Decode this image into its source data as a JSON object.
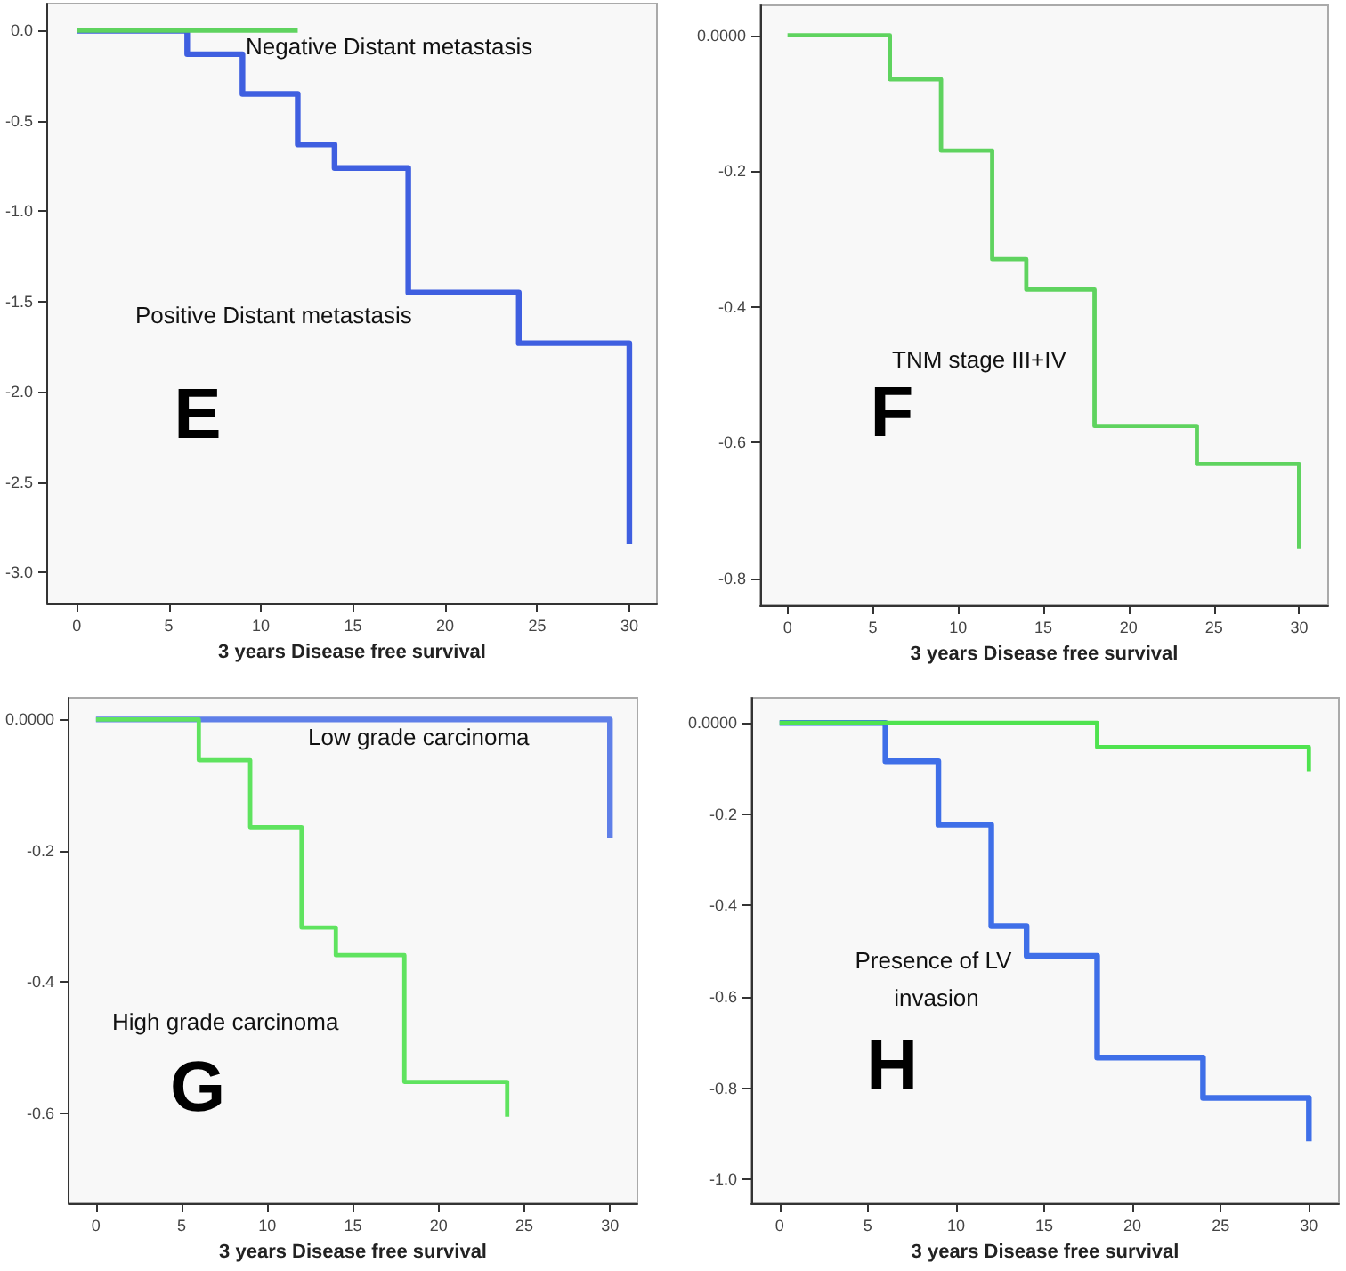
{
  "chart_data": [
    {
      "type": "step",
      "xlabel": "3 years Disease free survival",
      "annotations": [
        "E"
      ],
      "series": [
        {
          "name": "Negative Distant metastasis",
          "color": "#5fd35f",
          "x": [
            0,
            12
          ],
          "values": [
            0,
            0
          ]
        },
        {
          "name": "Positive Distant metastasis",
          "color": "#3f5fe0",
          "x": [
            0,
            6,
            9,
            12,
            14,
            18,
            24,
            30
          ],
          "values": [
            0,
            -0.13,
            -0.35,
            -0.63,
            -0.76,
            -1.45,
            -1.73,
            -2.84
          ]
        }
      ],
      "xlim": [
        -1.6,
        31.5
      ],
      "xticks": [
        0,
        5,
        10,
        15,
        20,
        25,
        30
      ],
      "ylim": [
        -3.17,
        0.15
      ],
      "yticks": [
        {
          "value": 0,
          "label": "0.0"
        },
        -0.5,
        {
          "value": -1,
          "label": "-1.0"
        },
        -1.5,
        {
          "value": -2,
          "label": "-2.0"
        },
        -2.5,
        {
          "value": -3,
          "label": "-3.0"
        }
      ]
    },
    {
      "type": "step",
      "xlabel": "3 years Disease free survival",
      "annotations": [
        "F"
      ],
      "series": [
        {
          "name": "TNM stage III+IV",
          "color": "#5fd35f",
          "x": [
            0,
            6,
            9,
            12,
            14,
            18,
            24,
            30
          ],
          "values": [
            0,
            -0.065,
            -0.17,
            -0.33,
            -0.375,
            -0.576,
            -0.632,
            -0.757
          ]
        }
      ],
      "xlim": [
        -1.6,
        31.7
      ],
      "xticks": [
        0,
        5,
        10,
        15,
        20,
        25,
        30
      ],
      "ylim": [
        -0.84,
        0.044
      ],
      "yticks": [
        {
          "value": 0,
          "label": "0.0000"
        },
        -0.2,
        -0.4,
        -0.6,
        -0.8
      ]
    },
    {
      "type": "step",
      "xlabel": "3 years Disease free survival",
      "annotations": [
        "G"
      ],
      "series": [
        {
          "name": "High grade carcinoma",
          "color": "#5fe35f",
          "x": [
            0,
            6,
            9,
            12,
            14,
            18,
            24
          ],
          "values": [
            0,
            -0.062,
            -0.164,
            -0.317,
            -0.359,
            -0.552,
            -0.605
          ]
        },
        {
          "name": "Low grade carcinoma",
          "color": "#5f7fe8",
          "x": [
            0,
            30
          ],
          "values": [
            0,
            -0.18
          ]
        }
      ],
      "xlim": [
        -1.6,
        31.6
      ],
      "xticks": [
        0,
        5,
        10,
        15,
        20,
        25,
        30
      ],
      "ylim": [
        -0.737,
        0.033
      ],
      "yticks": [
        {
          "value": 0,
          "label": "0.0000"
        },
        -0.2,
        -0.4,
        -0.6
      ]
    },
    {
      "type": "step",
      "xlabel": "3 years Disease free survival",
      "annotations": [
        "H"
      ],
      "series": [
        {
          "color": "#4fe34f",
          "x": [
            0,
            18,
            30
          ],
          "values": [
            0,
            -0.053,
            -0.106
          ]
        },
        {
          "name": "Presence of LV invasion",
          "color": "#3f6fe8",
          "x": [
            0,
            6,
            9,
            12,
            14,
            18,
            24,
            30
          ],
          "values": [
            0,
            -0.084,
            -0.223,
            -0.445,
            -0.51,
            -0.733,
            -0.821,
            -0.916
          ]
        }
      ],
      "xlim": [
        -1.6,
        31.7
      ],
      "xticks": [
        0,
        5,
        10,
        15,
        20,
        25,
        30
      ],
      "ylim": [
        -1.052,
        0.055
      ],
      "yticks": [
        {
          "value": 0,
          "label": "0.0000"
        },
        -0.2,
        -0.4,
        -0.6,
        -0.8,
        {
          "value": -1,
          "label": "-1.0"
        }
      ]
    }
  ]
}
